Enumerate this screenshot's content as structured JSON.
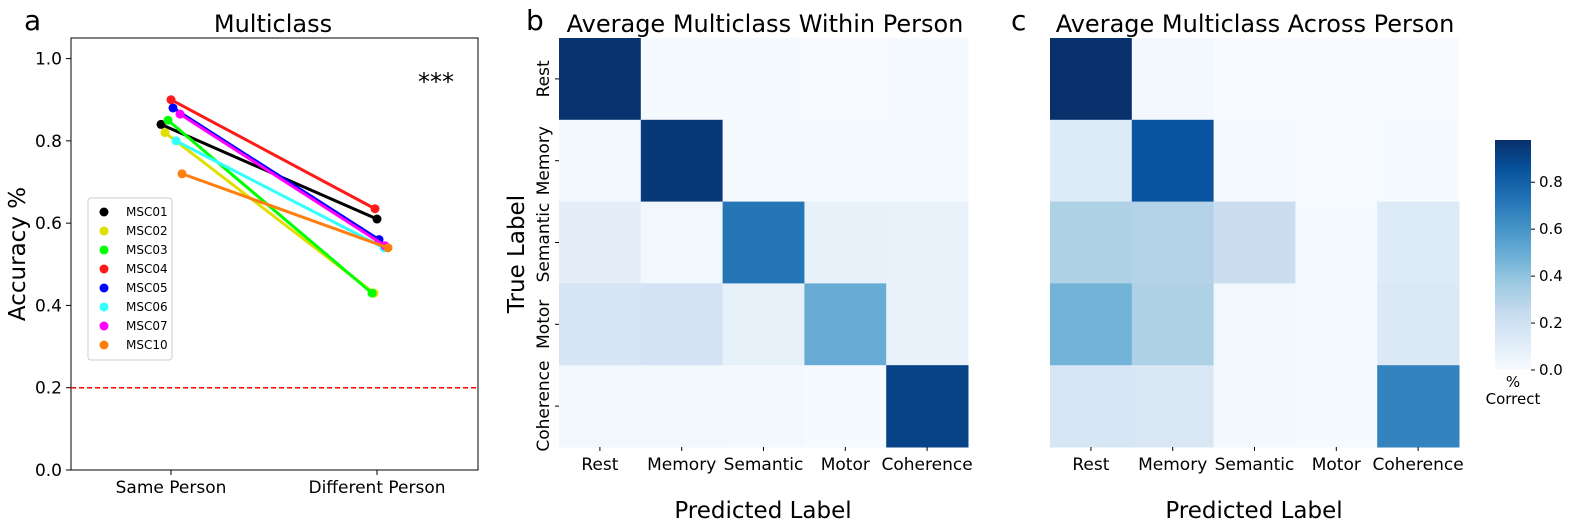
{
  "chart_data": [
    {
      "panel_label": "a",
      "type": "line",
      "title": "Multiclass",
      "ylabel": "Accuracy %",
      "ylim": [
        0.0,
        1.05
      ],
      "yticks": [
        "0.0",
        "0.2",
        "0.4",
        "0.6",
        "0.8",
        "1.0"
      ],
      "ytick_values": [
        0.0,
        0.2,
        0.4,
        0.6,
        0.8,
        1.0
      ],
      "categories": [
        "Same Person",
        "Different Person"
      ],
      "chance_level": 0.2,
      "significance": "***",
      "legend_position": "center-left",
      "series": [
        {
          "name": "MSC01",
          "color": "#000000",
          "values": [
            0.84,
            0.61
          ]
        },
        {
          "name": "MSC02",
          "color": "#e0e000",
          "values": [
            0.82,
            0.43
          ]
        },
        {
          "name": "MSC03",
          "color": "#00ff00",
          "values": [
            0.85,
            0.43
          ]
        },
        {
          "name": "MSC04",
          "color": "#ff1a1a",
          "values": [
            0.9,
            0.635
          ]
        },
        {
          "name": "MSC05",
          "color": "#0000ff",
          "values": [
            0.88,
            0.56
          ]
        },
        {
          "name": "MSC06",
          "color": "#33ffff",
          "values": [
            0.8,
            0.54
          ]
        },
        {
          "name": "MSC07",
          "color": "#ff00ff",
          "values": [
            0.865,
            0.545
          ]
        },
        {
          "name": "MSC10",
          "color": "#ff7f0e",
          "values": [
            0.72,
            0.54
          ]
        }
      ]
    },
    {
      "panel_label": "b",
      "type": "heatmap",
      "title": "Average Multiclass Within Person",
      "xlabel": "Predicted Label",
      "ylabel": "True Label",
      "x_categories": [
        "Rest",
        "Memory",
        "Semantic",
        "Motor",
        "Coherence"
      ],
      "y_categories": [
        "Rest",
        "Memory",
        "Semantic",
        "Motor",
        "Coherence"
      ],
      "matrix": [
        [
          0.97,
          0.01,
          0.01,
          0.0,
          0.01
        ],
        [
          0.02,
          0.95,
          0.01,
          0.01,
          0.01
        ],
        [
          0.1,
          0.03,
          0.72,
          0.08,
          0.07
        ],
        [
          0.17,
          0.18,
          0.08,
          0.5,
          0.07
        ],
        [
          0.03,
          0.03,
          0.02,
          0.01,
          0.91
        ]
      ]
    },
    {
      "panel_label": "c",
      "type": "heatmap",
      "title": "Average Multiclass Across Person",
      "xlabel": "Predicted Label",
      "x_categories": [
        "Rest",
        "Memory",
        "Semantic",
        "Motor",
        "Coherence"
      ],
      "y_categories": [
        "Rest",
        "Memory",
        "Semantic",
        "Motor",
        "Coherence"
      ],
      "matrix": [
        [
          0.98,
          0.02,
          0.0,
          0.0,
          0.0
        ],
        [
          0.13,
          0.85,
          0.01,
          0.0,
          0.01
        ],
        [
          0.32,
          0.3,
          0.22,
          0.01,
          0.13
        ],
        [
          0.47,
          0.32,
          0.03,
          0.01,
          0.14
        ],
        [
          0.16,
          0.15,
          0.02,
          0.01,
          0.67
        ]
      ]
    }
  ],
  "colorbar": {
    "label": "% Correct",
    "label_lines": [
      "%",
      "Correct"
    ],
    "ticks": [
      "0.0",
      "0.2",
      "0.4",
      "0.6",
      "0.8"
    ],
    "tick_values": [
      0.0,
      0.2,
      0.4,
      0.6,
      0.8
    ],
    "range": [
      0.0,
      0.98
    ],
    "colormap": "Blues"
  }
}
